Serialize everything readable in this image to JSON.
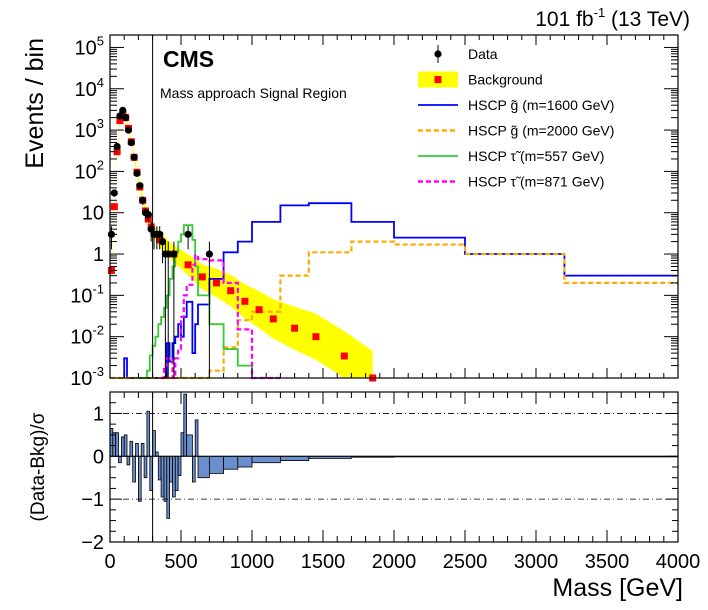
{
  "header": {
    "lumi_prefix": "101 fb",
    "lumi_exp": "-1",
    "lumi_suffix": " (13 TeV)",
    "cms_label": "CMS",
    "region_label": "Mass approach Signal Region"
  },
  "chart_data": [
    {
      "type": "histogram",
      "ylabel": "Events / bin",
      "yscale": "log",
      "ylim": [
        0.001,
        200000
      ],
      "xlim": [
        0,
        4000
      ],
      "y_tick_labels": [
        "10^-3",
        "10^-2",
        "10^-1",
        "1",
        "10",
        "10^2",
        "10^3",
        "10^4",
        "10^5"
      ],
      "cut_line_mass": 300,
      "legend_placement": "top-right",
      "legend": [
        {
          "label": "Data",
          "kind": "marker-errorbar",
          "color": "#000000"
        },
        {
          "label": "Background",
          "kind": "band-marker",
          "color": "#ffff00",
          "marker_color": "#ff0000"
        },
        {
          "label": "HSCP g̃ (m=1600 GeV)",
          "kind": "solid",
          "color": "#0000ff"
        },
        {
          "label": "HSCP g̃ (m=2000 GeV)",
          "kind": "dashed",
          "color": "#ffaa00"
        },
        {
          "label": "HSCP τ̃ (m=557 GeV)",
          "kind": "solid",
          "color": "#33cc33"
        },
        {
          "label": "HSCP τ̃ (m=871 GeV)",
          "kind": "dashed",
          "color": "#ff00ff"
        }
      ],
      "data_points": [
        {
          "x": 10,
          "y": 3,
          "err": 1.7
        },
        {
          "x": 30,
          "y": 30,
          "err": 5.5
        },
        {
          "x": 50,
          "y": 400,
          "err": 20
        },
        {
          "x": 70,
          "y": 2200,
          "err": 47
        },
        {
          "x": 90,
          "y": 3000,
          "err": 55
        },
        {
          "x": 110,
          "y": 2000,
          "err": 45
        },
        {
          "x": 130,
          "y": 1000,
          "err": 32
        },
        {
          "x": 150,
          "y": 500,
          "err": 22
        },
        {
          "x": 170,
          "y": 220,
          "err": 15
        },
        {
          "x": 190,
          "y": 90,
          "err": 9.5
        },
        {
          "x": 210,
          "y": 45,
          "err": 6.7
        },
        {
          "x": 230,
          "y": 20,
          "err": 4.5
        },
        {
          "x": 250,
          "y": 10,
          "err": 3.2
        },
        {
          "x": 270,
          "y": 9,
          "err": 3
        },
        {
          "x": 290,
          "y": 4,
          "err": 2
        },
        {
          "x": 310,
          "y": 3,
          "err": 1.7
        },
        {
          "x": 330,
          "y": 3,
          "err": 1.7
        },
        {
          "x": 350,
          "y": 3,
          "err": 1.7
        },
        {
          "x": 370,
          "y": 2,
          "err": 1.4
        },
        {
          "x": 390,
          "y": 1,
          "err": 1
        },
        {
          "x": 410,
          "y": 1,
          "err": 1
        },
        {
          "x": 450,
          "y": 1,
          "err": 1
        },
        {
          "x": 550,
          "y": 3,
          "err": 1.7
        },
        {
          "x": 700,
          "y": 1,
          "err": 1
        }
      ],
      "background": {
        "x": [
          10,
          30,
          50,
          70,
          90,
          110,
          130,
          150,
          170,
          190,
          210,
          230,
          250,
          270,
          290,
          350,
          450,
          550,
          650,
          750,
          850,
          950,
          1050,
          1150,
          1300,
          1450,
          1650,
          1850
        ],
        "y": [
          0.4,
          14,
          300,
          1700,
          2400,
          2000,
          1100,
          520,
          220,
          95,
          42,
          20,
          11,
          7,
          4.5,
          2.2,
          1.0,
          0.55,
          0.28,
          0.2,
          0.13,
          0.072,
          0.045,
          0.027,
          0.016,
          0.01,
          0.0034,
          0.001
        ],
        "unc_frac": [
          0.2,
          0.2,
          0.15,
          0.12,
          0.12,
          0.12,
          0.12,
          0.15,
          0.15,
          0.2,
          0.2,
          0.25,
          0.3,
          0.35,
          0.4,
          0.5,
          0.6,
          0.8,
          1.0,
          1.2,
          1.4,
          1.6,
          1.8,
          2.0,
          2.3,
          2.6,
          3.0,
          3.5
        ]
      },
      "signals": [
        {
          "name": "HSCP g̃ (m=1600 GeV)",
          "color": "#0000ff",
          "dashed": false,
          "edges": [
            100,
            120,
            140,
            280,
            300,
            380,
            400,
            420,
            440,
            460,
            480,
            500,
            520,
            540,
            580,
            600,
            620,
            700,
            800,
            900,
            1000,
            1200,
            1400,
            1700,
            2000,
            2500,
            3200,
            4000
          ],
          "values": [
            0.003,
            0.0005,
            0.0005,
            0.0005,
            0.0005,
            0.0005,
            0.007,
            0.0025,
            0.007,
            0.01,
            0.02,
            0.01,
            0.03,
            0.07,
            0.004,
            0.02,
            0.06,
            0.25,
            1.1,
            2.0,
            6.0,
            15.0,
            17.0,
            6.0,
            2.5,
            1.0,
            0.3
          ]
        },
        {
          "name": "HSCP g̃ (m=2000 GeV)",
          "color": "#ffaa00",
          "dashed": true,
          "edges": [
            0,
            700,
            800,
            900,
            1000,
            1200,
            1400,
            1700,
            2000,
            2500,
            3200,
            4000
          ],
          "values": [
            0.0005,
            0.0015,
            0.0055,
            0.025,
            0.04,
            0.3,
            1.1,
            2.0,
            1.7,
            1.0,
            0.2
          ]
        },
        {
          "name": "HSCP τ̃ (m=557 GeV)",
          "color": "#33cc33",
          "dashed": false,
          "edges": [
            200,
            240,
            260,
            280,
            300,
            320,
            340,
            360,
            380,
            400,
            420,
            440,
            460,
            480,
            500,
            520,
            540,
            580,
            600,
            620,
            700,
            800,
            900,
            1000,
            1200
          ],
          "values": [
            0.0006,
            0.001,
            0.0015,
            0.0035,
            0.006,
            0.01,
            0.02,
            0.03,
            0.05,
            0.1,
            0.25,
            0.5,
            1.1,
            2.0,
            3.0,
            5.0,
            5.0,
            2.2,
            0.5,
            0.1,
            0.02,
            0.005,
            0.002,
            0.0005
          ]
        },
        {
          "name": "HSCP τ̃ (m=871 GeV)",
          "color": "#ff00ff",
          "dashed": true,
          "edges": [
            360,
            380,
            400,
            420,
            440,
            460,
            480,
            500,
            520,
            540,
            580,
            600,
            620,
            700,
            800,
            900,
            1000,
            1200
          ],
          "values": [
            0.0005,
            0.002,
            0.003,
            0.003,
            0.0008,
            0.003,
            0.005,
            0.03,
            0.1,
            0.18,
            0.55,
            0.95,
            0.75,
            0.7,
            0.2,
            0.015,
            0.0008
          ]
        }
      ]
    },
    {
      "type": "bar",
      "ylabel": "(Data-Bkg)/σ",
      "xlabel": "Mass [GeV]",
      "xlim": [
        0,
        4000
      ],
      "ylim": [
        -2,
        1.5
      ],
      "y_ticks": [
        "−2",
        "−1",
        "0",
        "1"
      ],
      "x_ticks": [
        "0",
        "500",
        "1000",
        "1500",
        "2000",
        "2500",
        "3000",
        "3500",
        "4000"
      ],
      "reference_lines": [
        1,
        -1
      ],
      "bar_color": "#6b8fcc",
      "edges": [
        0,
        20,
        40,
        60,
        80,
        100,
        120,
        140,
        160,
        180,
        200,
        220,
        240,
        260,
        280,
        300,
        320,
        340,
        360,
        380,
        400,
        420,
        440,
        460,
        480,
        500,
        520,
        540,
        580,
        600,
        620,
        700,
        800,
        900,
        1000,
        1200,
        1400,
        1700,
        2000,
        2500,
        3200,
        4000
      ],
      "values": [
        0.65,
        0.55,
        0.55,
        -0.15,
        0.45,
        0.5,
        -0.2,
        0.35,
        -0.6,
        0.3,
        -1.05,
        0.3,
        -0.5,
        1.05,
        -0.8,
        0.6,
        0.1,
        -0.55,
        -0.95,
        -1.05,
        -1.45,
        -0.6,
        -0.95,
        -0.8,
        -0.45,
        0.55,
        1.45,
        0.5,
        -0.6,
        0.85,
        -0.5,
        -0.4,
        -0.3,
        -0.25,
        -0.15,
        -0.1,
        -0.05,
        -0.02,
        -0.01,
        -0.005,
        -0.005
      ]
    }
  ]
}
